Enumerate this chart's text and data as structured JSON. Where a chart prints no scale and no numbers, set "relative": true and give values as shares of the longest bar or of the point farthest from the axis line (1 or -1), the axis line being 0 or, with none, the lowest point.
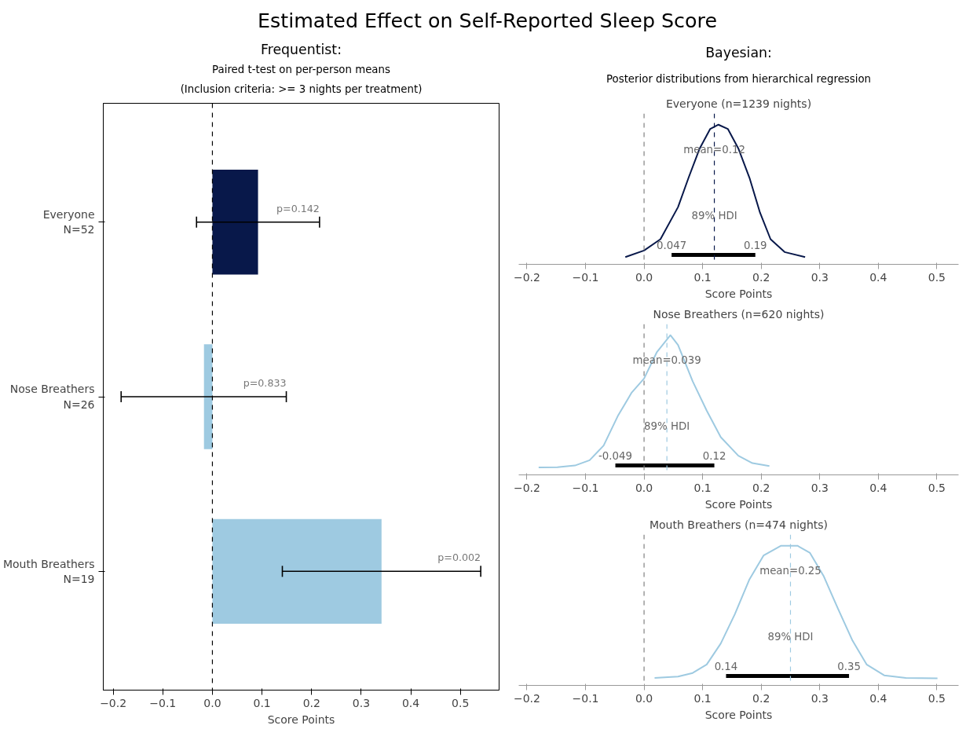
{
  "chart_data": [
    {
      "type": "other",
      "title": "Estimated Effect on Self-Reported Sleep Score"
    },
    {
      "type": "bar",
      "orientation": "horizontal",
      "title": "Frequentist:",
      "subtitle": "Paired t-test on per-person means\n(Inclusion criteria: >= 3 nights per treatment)",
      "xlabel": "Score Points",
      "categories": [
        "Everyone\nN=52",
        "Nose Breathers\nN=26",
        "Mouth Breathers\nN=19"
      ],
      "values": [
        0.092,
        -0.017,
        0.341
      ],
      "colors": [
        "#08184a",
        "#9ecae1",
        "#9ecae1"
      ],
      "errors": [
        [
          -0.032,
          0.216
        ],
        [
          -0.184,
          0.149
        ],
        [
          0.141,
          0.541
        ]
      ],
      "xlim": [
        -0.22,
        0.578
      ],
      "xticks": [
        {
          "value": -0.2,
          "label": "−0.2"
        },
        {
          "value": -0.1,
          "label": "−0.1"
        },
        {
          "value": 0,
          "label": "0.0"
        },
        {
          "value": 0.1,
          "label": "0.1"
        },
        {
          "value": 0.2,
          "label": "0.2"
        },
        {
          "value": 0.3,
          "label": "0.3"
        },
        {
          "value": 0.4,
          "label": "0.4"
        },
        {
          "value": 0.5,
          "label": "0.5"
        }
      ],
      "ref_lines": [
        {
          "axis": "x",
          "value": 0,
          "color": "#000000",
          "line_style": "dashed"
        }
      ],
      "annotations": [
        {
          "text": "p=0.142",
          "x": 0.216,
          "y": "Everyone\nN=52"
        },
        {
          "text": "p=0.833",
          "x": 0.149,
          "y": "Nose Breathers\nN=26"
        },
        {
          "text": "p=0.002",
          "x": 0.541,
          "y": "Mouth Breathers\nN=19"
        }
      ],
      "grid": false
    },
    {
      "type": "other",
      "title": "Bayesian:",
      "subtitle": "Posterior distributions from hierarchical regression"
    },
    {
      "type": "line",
      "relative": true,
      "title": "Everyone (n=1239 nights)",
      "xlabel": "Score Points",
      "tick_labels": "x",
      "grid": false,
      "xlim": [
        -0.214,
        0.537
      ],
      "xticks": [
        {
          "value": -0.2,
          "label": "−0.2"
        },
        {
          "value": -0.1,
          "label": "−0.1"
        },
        {
          "value": 0,
          "label": "0.0"
        },
        {
          "value": 0.1,
          "label": "0.1"
        },
        {
          "value": 0.2,
          "label": "0.2"
        },
        {
          "value": 0.3,
          "label": "0.3"
        },
        {
          "value": 0.4,
          "label": "0.4"
        },
        {
          "value": 0.5,
          "label": "0.5"
        }
      ],
      "series": [
        {
          "color": "#08184a",
          "x": [
            -0.032,
            0,
            0.028,
            0.058,
            0.076,
            0.095,
            0.113,
            0.127,
            0.143,
            0.161,
            0.18,
            0.198,
            0.216,
            0.24,
            0.275
          ],
          "values": [
            0.052,
            0.099,
            0.18,
            0.41,
            0.62,
            0.83,
            0.97,
            1.0,
            0.97,
            0.83,
            0.62,
            0.37,
            0.18,
            0.088,
            0.052
          ]
        },
        {
          "color": "#000000",
          "x": [
            0.047,
            0.19
          ],
          "values": [
            0.067,
            0.067
          ]
        }
      ],
      "ref_lines": [
        {
          "axis": "x",
          "value": 0,
          "color": "#808080",
          "line_style": "dashed"
        },
        {
          "axis": "x",
          "value": 0.12,
          "label": "mean=0.12",
          "color": "#08184a",
          "line_style": "dashed"
        }
      ],
      "annotations": [
        {
          "text": "89% HDI",
          "x": 0.12,
          "y": 0.35
        },
        {
          "text": "0.047",
          "x": 0.047,
          "y": 0.067
        },
        {
          "text": "0.19",
          "x": 0.19,
          "y": 0.067
        }
      ]
    },
    {
      "type": "line",
      "relative": true,
      "title": "Nose Breathers (n=620 nights)",
      "xlabel": "Score Points",
      "tick_labels": "x",
      "grid": false,
      "xlim": [
        -0.214,
        0.537
      ],
      "xticks": [
        {
          "value": -0.2,
          "label": "−0.2"
        },
        {
          "value": -0.1,
          "label": "−0.1"
        },
        {
          "value": 0,
          "label": "0.0"
        },
        {
          "value": 0.1,
          "label": "0.1"
        },
        {
          "value": 0.2,
          "label": "0.2"
        },
        {
          "value": 0.3,
          "label": "0.3"
        },
        {
          "value": 0.4,
          "label": "0.4"
        },
        {
          "value": 0.5,
          "label": "0.5"
        }
      ],
      "series": [
        {
          "color": "#9ecae1",
          "x": [
            -0.18,
            -0.148,
            -0.118,
            -0.093,
            -0.069,
            -0.045,
            -0.021,
            0,
            0.022,
            0.045,
            0.058,
            0.083,
            0.107,
            0.131,
            0.161,
            0.185,
            0.214
          ],
          "values": [
            0.053,
            0.055,
            0.067,
            0.105,
            0.21,
            0.42,
            0.59,
            0.69,
            0.88,
            1.0,
            0.93,
            0.67,
            0.46,
            0.27,
            0.137,
            0.084,
            0.063
          ]
        },
        {
          "color": "#000000",
          "x": [
            -0.049,
            0.12
          ],
          "values": [
            0.067,
            0.067
          ]
        }
      ],
      "ref_lines": [
        {
          "axis": "x",
          "value": 0,
          "color": "#808080",
          "line_style": "dashed"
        },
        {
          "axis": "x",
          "value": 0.039,
          "label": "mean=0.039",
          "color": "#9ecae1",
          "line_style": "dashed"
        }
      ],
      "annotations": [
        {
          "text": "89% HDI",
          "x": 0.039,
          "y": 0.35
        },
        {
          "text": "-0.049",
          "x": -0.049,
          "y": 0.067
        },
        {
          "text": "0.12",
          "x": 0.12,
          "y": 0.067
        }
      ]
    },
    {
      "type": "line",
      "relative": true,
      "title": "Mouth Breathers (n=474 nights)",
      "xlabel": "Score Points",
      "tick_labels": "x",
      "grid": false,
      "xlim": [
        -0.214,
        0.537
      ],
      "xticks": [
        {
          "value": -0.2,
          "label": "−0.2"
        },
        {
          "value": -0.1,
          "label": "−0.1"
        },
        {
          "value": 0,
          "label": "0.0"
        },
        {
          "value": 0.1,
          "label": "0.1"
        },
        {
          "value": 0.2,
          "label": "0.2"
        },
        {
          "value": 0.3,
          "label": "0.3"
        },
        {
          "value": 0.4,
          "label": "0.4"
        },
        {
          "value": 0.5,
          "label": "0.5"
        }
      ],
      "series": [
        {
          "color": "#9ecae1",
          "x": [
            0.018,
            0.058,
            0.083,
            0.107,
            0.131,
            0.155,
            0.18,
            0.204,
            0.234,
            0.262,
            0.283,
            0.307,
            0.331,
            0.356,
            0.38,
            0.41,
            0.447,
            0.501
          ],
          "values": [
            0.053,
            0.063,
            0.089,
            0.15,
            0.3,
            0.51,
            0.76,
            0.93,
            1.0,
            1.0,
            0.95,
            0.78,
            0.55,
            0.32,
            0.15,
            0.072,
            0.053,
            0.051
          ]
        },
        {
          "color": "#000000",
          "x": [
            0.14,
            0.35
          ],
          "values": [
            0.067,
            0.067
          ]
        }
      ],
      "ref_lines": [
        {
          "axis": "x",
          "value": 0,
          "color": "#808080",
          "line_style": "dashed"
        },
        {
          "axis": "x",
          "value": 0.25,
          "label": "mean=0.25",
          "color": "#9ecae1",
          "line_style": "dashed"
        }
      ],
      "annotations": [
        {
          "text": "89% HDI",
          "x": 0.25,
          "y": 0.35
        },
        {
          "text": "0.14",
          "x": 0.14,
          "y": 0.067
        },
        {
          "text": "0.35",
          "x": 0.35,
          "y": 0.067
        }
      ]
    }
  ]
}
